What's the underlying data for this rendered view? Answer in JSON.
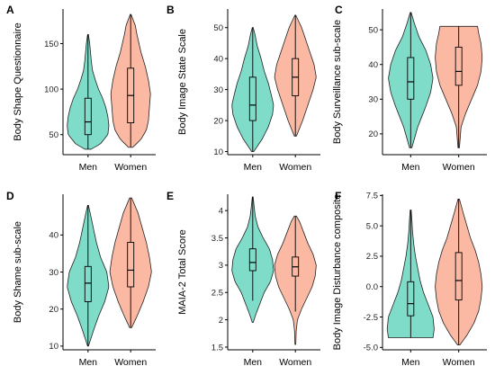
{
  "colors": {
    "men": "#7fdcc8",
    "women": "#fbb9a4",
    "outline": "#222222"
  },
  "chart_data": [
    {
      "panel": "A",
      "type": "violin",
      "ylabel": "Body Shape Questionnaire",
      "categories": [
        "Men",
        "Women"
      ],
      "ylim": [
        28,
        188
      ],
      "yticks": [
        50,
        100,
        150
      ],
      "series": [
        {
          "name": "Men",
          "min": 34,
          "max": 160,
          "q1": 50,
          "median": 64,
          "q3": 90,
          "density": [
            [
              34,
              0.15
            ],
            [
              40,
              0.6
            ],
            [
              50,
              0.95
            ],
            [
              60,
              1.0
            ],
            [
              70,
              0.95
            ],
            [
              80,
              0.85
            ],
            [
              90,
              0.7
            ],
            [
              100,
              0.5
            ],
            [
              110,
              0.35
            ],
            [
              120,
              0.22
            ],
            [
              130,
              0.16
            ],
            [
              140,
              0.12
            ],
            [
              150,
              0.08
            ],
            [
              160,
              0.02
            ]
          ]
        },
        {
          "name": "Women",
          "min": 36,
          "max": 182,
          "q1": 63,
          "median": 93,
          "q3": 123,
          "density": [
            [
              36,
              0.1
            ],
            [
              45,
              0.5
            ],
            [
              55,
              0.75
            ],
            [
              65,
              0.85
            ],
            [
              80,
              0.9
            ],
            [
              95,
              0.95
            ],
            [
              110,
              0.85
            ],
            [
              125,
              0.7
            ],
            [
              140,
              0.5
            ],
            [
              150,
              0.4
            ],
            [
              160,
              0.3
            ],
            [
              170,
              0.22
            ],
            [
              182,
              0.02
            ]
          ]
        }
      ]
    },
    {
      "panel": "B",
      "type": "violin",
      "ylabel": "Body Image State Scale",
      "categories": [
        "Men",
        "Women"
      ],
      "ylim": [
        9,
        56
      ],
      "yticks": [
        10,
        20,
        30,
        40,
        50
      ],
      "series": [
        {
          "name": "Men",
          "min": 10,
          "max": 50,
          "q1": 20,
          "median": 25,
          "q3": 34,
          "density": [
            [
              10,
              0.05
            ],
            [
              14,
              0.45
            ],
            [
              18,
              0.75
            ],
            [
              22,
              0.95
            ],
            [
              25,
              1.0
            ],
            [
              28,
              0.9
            ],
            [
              32,
              0.75
            ],
            [
              36,
              0.55
            ],
            [
              40,
              0.4
            ],
            [
              44,
              0.22
            ],
            [
              48,
              0.1
            ],
            [
              50,
              0.02
            ]
          ]
        },
        {
          "name": "Women",
          "min": 15,
          "max": 54,
          "q1": 28,
          "median": 34,
          "q3": 40,
          "density": [
            [
              15,
              0.05
            ],
            [
              20,
              0.35
            ],
            [
              25,
              0.6
            ],
            [
              30,
              0.85
            ],
            [
              34,
              1.0
            ],
            [
              38,
              0.9
            ],
            [
              42,
              0.7
            ],
            [
              46,
              0.5
            ],
            [
              50,
              0.3
            ],
            [
              54,
              0.02
            ]
          ]
        }
      ]
    },
    {
      "panel": "C",
      "type": "violin",
      "ylabel": "Body Surveillance sub-scale",
      "categories": [
        "Men",
        "Women"
      ],
      "ylim": [
        14,
        56
      ],
      "yticks": [
        20,
        30,
        40,
        50
      ],
      "series": [
        {
          "name": "Men",
          "min": 16,
          "max": 55,
          "q1": 30,
          "median": 35,
          "q3": 42,
          "density": [
            [
              16,
              0.05
            ],
            [
              22,
              0.3
            ],
            [
              28,
              0.65
            ],
            [
              32,
              0.85
            ],
            [
              36,
              0.95
            ],
            [
              40,
              0.85
            ],
            [
              44,
              0.65
            ],
            [
              48,
              0.35
            ],
            [
              52,
              0.15
            ],
            [
              55,
              0.02
            ]
          ]
        },
        {
          "name": "Women",
          "min": 16,
          "max": 51,
          "q1": 34,
          "median": 38,
          "q3": 45,
          "density": [
            [
              16,
              0.03
            ],
            [
              22,
              0.1
            ],
            [
              26,
              0.3
            ],
            [
              30,
              0.55
            ],
            [
              34,
              0.8
            ],
            [
              38,
              0.95
            ],
            [
              42,
              1.0
            ],
            [
              46,
              0.95
            ],
            [
              49,
              0.85
            ],
            [
              51,
              0.8
            ]
          ]
        }
      ]
    },
    {
      "panel": "D",
      "type": "violin",
      "ylabel": "Body Shame sub-scale",
      "categories": [
        "Men",
        "Women"
      ],
      "ylim": [
        9,
        51
      ],
      "yticks": [
        10,
        20,
        30,
        40
      ],
      "series": [
        {
          "name": "Men",
          "min": 10,
          "max": 48,
          "q1": 22,
          "median": 27,
          "q3": 31.5,
          "density": [
            [
              10,
              0.02
            ],
            [
              14,
              0.25
            ],
            [
              18,
              0.5
            ],
            [
              22,
              0.8
            ],
            [
              26,
              1.0
            ],
            [
              30,
              0.9
            ],
            [
              34,
              0.6
            ],
            [
              38,
              0.4
            ],
            [
              42,
              0.25
            ],
            [
              46,
              0.1
            ],
            [
              48,
              0.02
            ]
          ]
        },
        {
          "name": "Women",
          "min": 15,
          "max": 50,
          "q1": 26,
          "median": 30.5,
          "q3": 38,
          "density": [
            [
              15,
              0.05
            ],
            [
              18,
              0.3
            ],
            [
              22,
              0.6
            ],
            [
              26,
              0.85
            ],
            [
              30,
              1.0
            ],
            [
              34,
              0.9
            ],
            [
              38,
              0.75
            ],
            [
              42,
              0.55
            ],
            [
              46,
              0.35
            ],
            [
              50,
              0.05
            ]
          ]
        }
      ]
    },
    {
      "panel": "E",
      "type": "violin",
      "ylabel": "MAIA-2 Total Score",
      "categories": [
        "Men",
        "Women"
      ],
      "ylim": [
        1.45,
        4.3
      ],
      "yticks": [
        1.5,
        2.0,
        2.5,
        3.0,
        3.5,
        4.0
      ],
      "series": [
        {
          "name": "Men",
          "min": 2.35,
          "max": 4.25,
          "q1": 2.9,
          "median": 3.05,
          "q3": 3.3,
          "density": [
            [
              1.95,
              0.02
            ],
            [
              2.1,
              0.15
            ],
            [
              2.3,
              0.35
            ],
            [
              2.5,
              0.55
            ],
            [
              2.7,
              0.85
            ],
            [
              2.9,
              1.0
            ],
            [
              3.1,
              0.95
            ],
            [
              3.3,
              0.8
            ],
            [
              3.5,
              0.5
            ],
            [
              3.7,
              0.25
            ],
            [
              3.9,
              0.12
            ],
            [
              4.1,
              0.06
            ],
            [
              4.25,
              0.02
            ]
          ]
        },
        {
          "name": "Women",
          "min": 2.15,
          "max": 3.9,
          "q1": 2.8,
          "median": 2.97,
          "q3": 3.15,
          "density": [
            [
              1.55,
              0.02
            ],
            [
              1.8,
              0.04
            ],
            [
              2.0,
              0.1
            ],
            [
              2.2,
              0.3
            ],
            [
              2.4,
              0.55
            ],
            [
              2.6,
              0.8
            ],
            [
              2.8,
              0.95
            ],
            [
              3.0,
              1.0
            ],
            [
              3.2,
              0.85
            ],
            [
              3.4,
              0.6
            ],
            [
              3.6,
              0.4
            ],
            [
              3.8,
              0.2
            ],
            [
              3.9,
              0.05
            ]
          ]
        }
      ]
    },
    {
      "panel": "F",
      "type": "violin",
      "ylabel": "Body Image Disturbance composite",
      "categories": [
        "Men",
        "Women"
      ],
      "ylim": [
        -5.2,
        7.6
      ],
      "yticks": [
        -5.0,
        -2.5,
        0.0,
        2.5,
        5.0,
        7.5
      ],
      "tick_labels": [
        "-5.0",
        "-2.5",
        "0.0",
        "2.5",
        "5.0",
        "7.5"
      ],
      "series": [
        {
          "name": "Men",
          "min": -4.2,
          "max": 6.3,
          "q1": -2.4,
          "median": -1.4,
          "q3": 0.4,
          "density": [
            [
              -4.2,
              0.95
            ],
            [
              -3.5,
              1.0
            ],
            [
              -2.5,
              0.95
            ],
            [
              -1.5,
              0.75
            ],
            [
              -0.5,
              0.55
            ],
            [
              0.5,
              0.4
            ],
            [
              1.5,
              0.3
            ],
            [
              2.5,
              0.2
            ],
            [
              3.5,
              0.13
            ],
            [
              4.5,
              0.08
            ],
            [
              5.5,
              0.05
            ],
            [
              6.3,
              0.02
            ]
          ]
        },
        {
          "name": "Women",
          "min": -4.8,
          "max": 7.2,
          "q1": -1.1,
          "median": 0.5,
          "q3": 2.8,
          "density": [
            [
              -4.8,
              0.05
            ],
            [
              -4.0,
              0.35
            ],
            [
              -3.0,
              0.65
            ],
            [
              -2.0,
              0.85
            ],
            [
              -1.0,
              0.95
            ],
            [
              0.0,
              1.0
            ],
            [
              1.0,
              0.95
            ],
            [
              2.0,
              0.85
            ],
            [
              3.0,
              0.7
            ],
            [
              4.0,
              0.5
            ],
            [
              5.0,
              0.35
            ],
            [
              6.0,
              0.2
            ],
            [
              7.2,
              0.03
            ]
          ]
        }
      ]
    }
  ]
}
